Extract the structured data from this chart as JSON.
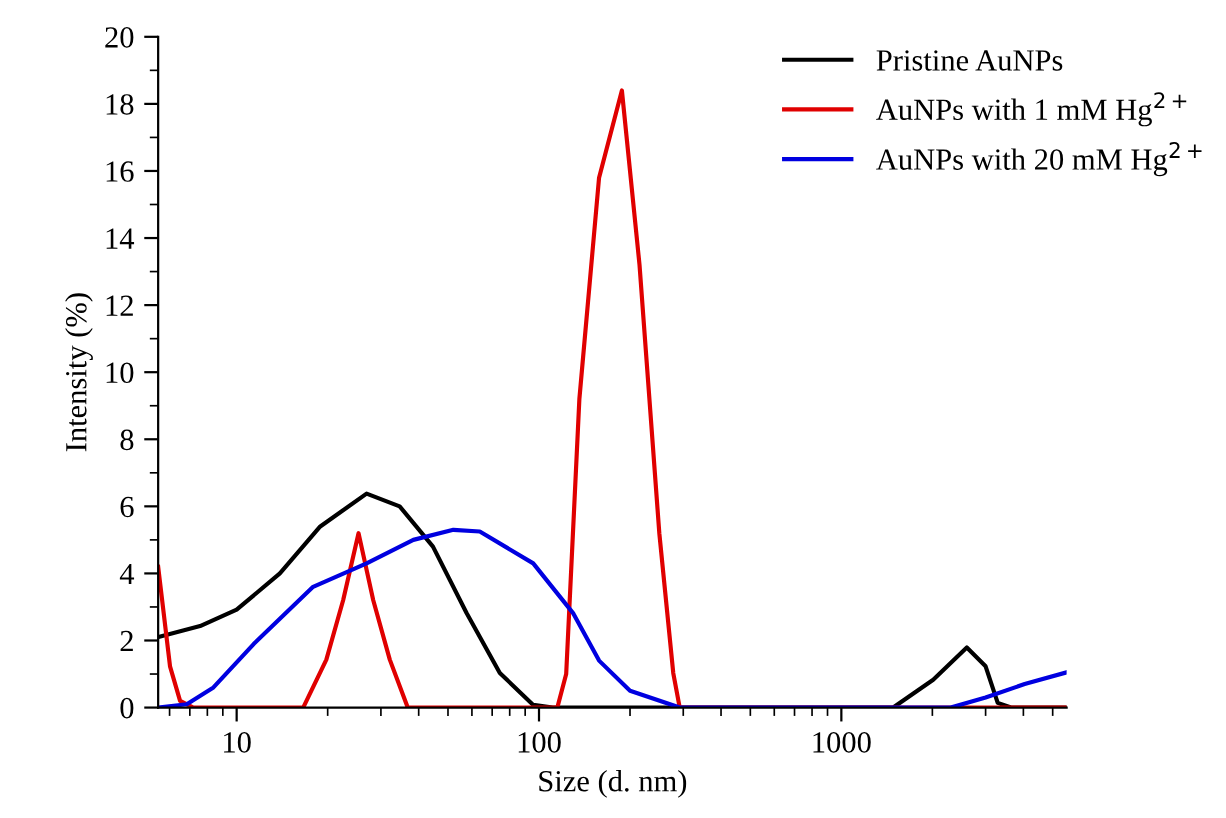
{
  "chart_data": {
    "type": "line",
    "xlabel": "Size (d. nm)",
    "ylabel": "Intensity (%)",
    "log": "x",
    "xlim": [
      5.5,
      5560
    ],
    "xticks": [
      10,
      100,
      1000
    ],
    "ylim": [
      0,
      20
    ],
    "yticks": [
      0,
      2,
      4,
      6,
      8,
      10,
      12,
      14,
      16,
      18,
      20
    ],
    "grid": false,
    "legend": "top right",
    "marker": "none",
    "line_style": "solid",
    "series": [
      {
        "name": "Pristine AuNPs",
        "color": "#000000",
        "x": [
          5.5,
          7.57,
          10,
          13.9,
          18.9,
          26.9,
          34.6,
          44.6,
          57.6,
          74.2,
          95.7,
          111,
          1484,
          2013,
          2600,
          3000,
          3290,
          3640,
          5560
        ],
        "values": [
          2.1,
          2.43,
          2.92,
          4.0,
          5.4,
          6.38,
          6.0,
          4.8,
          2.82,
          1.03,
          0.08,
          0,
          0,
          0.83,
          1.79,
          1.23,
          0.14,
          0,
          0
        ]
      },
      {
        "name": "AuNPs with 1 mM Hg$^{2+}$",
        "color": "#e00000",
        "x": [
          5.5,
          6.02,
          6.5,
          7.19,
          16.6,
          19.8,
          22.5,
          25.3,
          28.3,
          32.1,
          36.8,
          115,
          123,
          136,
          158,
          188,
          215,
          250,
          278,
          292,
          5560
        ],
        "values": [
          4.2,
          1.23,
          0.2,
          0,
          0,
          1.43,
          3.2,
          5.2,
          3.2,
          1.43,
          0,
          0,
          1.0,
          9.2,
          15.8,
          18.4,
          13.2,
          5.2,
          1.03,
          0,
          0
        ]
      },
      {
        "name": "AuNPs with 20 mM Hg$^{2+}$",
        "color": "#0000e0",
        "x": [
          5.5,
          6.84,
          8.38,
          11.4,
          17.9,
          26.9,
          38.4,
          52.1,
          63.7,
          95.7,
          130,
          158,
          200,
          292,
          2300,
          3000,
          4040,
          5560
        ],
        "values": [
          0,
          0.1,
          0.6,
          1.9,
          3.6,
          4.3,
          5.0,
          5.3,
          5.25,
          4.3,
          2.8,
          1.4,
          0.5,
          0,
          0,
          0.3,
          0.7,
          1.05
        ]
      }
    ]
  }
}
